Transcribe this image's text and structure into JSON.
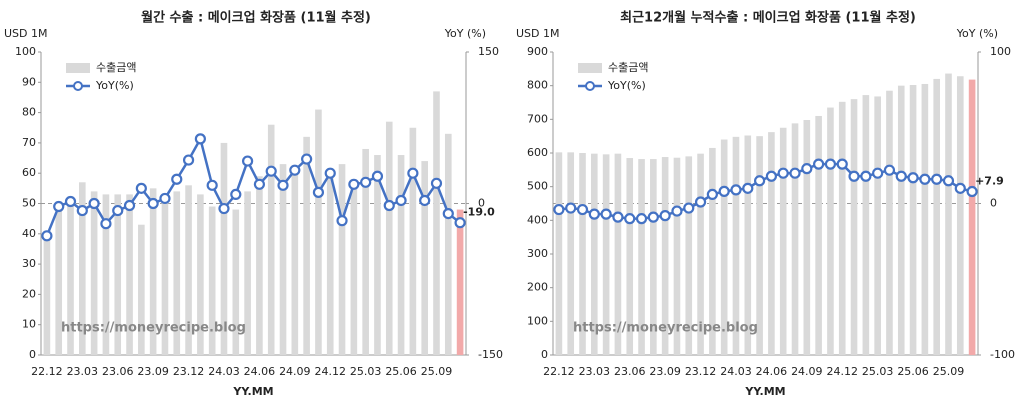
{
  "chart_data": [
    {
      "type": "bar_line",
      "title": "월간 수출 : 메이크업 화장품 (11월 추정)",
      "y_label": "USD 1M",
      "y2_label": "YoY (%)",
      "x_label": "YY.MM",
      "watermark": "https://moneyrecipe.blog",
      "categories": [
        "22.12",
        null,
        null,
        "23.03",
        null,
        null,
        "23.06",
        null,
        null,
        "23.09",
        null,
        null,
        "23.12",
        null,
        null,
        "24.03",
        null,
        null,
        "24.06",
        null,
        null,
        "24.09",
        null,
        null,
        "24.12",
        null,
        null,
        "25.03",
        null,
        null,
        "25.06",
        null,
        null,
        "25.09",
        null,
        null
      ],
      "series": [
        {
          "name": "수출금액",
          "color": "#d9d9d9",
          "last_color": "#f2a9a9",
          "values": [
            41,
            48,
            51,
            57,
            54,
            53,
            53,
            53,
            43,
            55,
            52,
            54,
            56,
            53,
            49,
            70,
            48,
            54,
            59,
            76,
            63,
            62,
            72,
            81,
            60,
            63,
            55,
            68,
            66,
            77,
            66,
            75,
            64,
            87,
            73,
            48
          ]
        },
        {
          "name": "YoY(%)",
          "axis": "y2",
          "color": "#4472c4",
          "label_color": "#e0403a",
          "values": [
            -32,
            -3,
            2,
            -7,
            0,
            -20,
            -7,
            -2,
            15,
            0,
            5,
            24,
            43,
            64,
            18,
            -5,
            9,
            42,
            19,
            32,
            18,
            33,
            44,
            11,
            30,
            -17,
            19,
            21,
            27,
            -2,
            3,
            30,
            3,
            20,
            -10,
            -19
          ],
          "value_labels": [
            null,
            null,
            null,
            null,
            null,
            null,
            null,
            null,
            null,
            null,
            null,
            null,
            null,
            null,
            null,
            null,
            null,
            null,
            null,
            null,
            null,
            null,
            null,
            null,
            null,
            null,
            null,
            null,
            null,
            null,
            null,
            null,
            null,
            null,
            null,
            "-19.0"
          ]
        }
      ],
      "ylim": [
        0,
        100
      ],
      "yticks": [
        0,
        10,
        20,
        30,
        40,
        50,
        60,
        70,
        80,
        90,
        100
      ],
      "y2lim": [
        -150,
        150
      ],
      "y2ticks": [
        -150,
        0,
        150
      ],
      "legend": "upper left",
      "grid": false
    },
    {
      "type": "bar_line",
      "title": "최근12개월 누적수출 : 메이크업 화장품 (11월 추정)",
      "y_label": "USD 1M",
      "y2_label": "YoY (%)",
      "x_label": "YY.MM",
      "watermark": "https://moneyrecipe.blog",
      "categories": [
        "22.12",
        null,
        null,
        "23.03",
        null,
        null,
        "23.06",
        null,
        null,
        "23.09",
        null,
        null,
        "23.12",
        null,
        null,
        "24.03",
        null,
        null,
        "24.06",
        null,
        null,
        "24.09",
        null,
        null,
        "24.12",
        null,
        null,
        "25.03",
        null,
        null,
        "25.06",
        null,
        null,
        "25.09",
        null,
        null
      ],
      "series": [
        {
          "name": "수출금액",
          "color": "#d9d9d9",
          "last_color": "#f2a9a9",
          "values": [
            602,
            602,
            600,
            598,
            596,
            598,
            585,
            582,
            582,
            588,
            586,
            590,
            598,
            615,
            640,
            648,
            652,
            650,
            662,
            675,
            688,
            698,
            710,
            735,
            752,
            760,
            772,
            768,
            785,
            800,
            802,
            805,
            820,
            836,
            828,
            818
          ]
        },
        {
          "name": "YoY(%)",
          "axis": "y2",
          "color": "#4472c4",
          "label_color": "#e0403a",
          "values": [
            -4,
            -3,
            -4,
            -7,
            -7,
            -9,
            -10,
            -10,
            -9,
            -8,
            -5,
            -3,
            1,
            6,
            8,
            9,
            10,
            15,
            18,
            20,
            20,
            23,
            26,
            26,
            26,
            18,
            18,
            20,
            22,
            18,
            17,
            16,
            16,
            15,
            10,
            7.9
          ],
          "value_labels": [
            null,
            null,
            null,
            null,
            null,
            null,
            null,
            null,
            null,
            null,
            null,
            null,
            null,
            null,
            null,
            null,
            null,
            null,
            null,
            null,
            null,
            null,
            null,
            null,
            null,
            null,
            null,
            null,
            null,
            null,
            null,
            null,
            null,
            null,
            null,
            "+7.9"
          ]
        }
      ],
      "ylim": [
        0,
        900
      ],
      "yticks": [
        0,
        100,
        200,
        300,
        400,
        500,
        600,
        700,
        800,
        900
      ],
      "y2lim": [
        -100,
        100
      ],
      "y2ticks": [
        -100,
        0,
        100
      ],
      "legend": "upper left",
      "grid": false
    }
  ]
}
